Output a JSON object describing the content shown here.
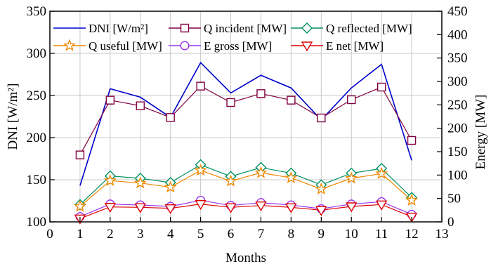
{
  "chart_data": {
    "type": "line",
    "xlabel": "Months",
    "ylabel_left": "DNI [W/m²]",
    "ylabel_right": "Energy [MW]",
    "x": [
      1,
      2,
      3,
      4,
      5,
      6,
      7,
      8,
      9,
      10,
      11,
      12
    ],
    "xlim": [
      0,
      13
    ],
    "xticks": [
      "0",
      "1",
      "2",
      "3",
      "4",
      "5",
      "6",
      "7",
      "8",
      "9",
      "10",
      "11",
      "12",
      "13"
    ],
    "ylim_left": [
      100,
      350
    ],
    "yticks_left": [
      "100",
      "150",
      "200",
      "250",
      "300",
      "350"
    ],
    "ylim_right": [
      0,
      450
    ],
    "yticks_right": [
      "0",
      "50",
      "100",
      "150",
      "200",
      "250",
      "300",
      "350",
      "400",
      "450"
    ],
    "grid": true,
    "legend_position": "top",
    "series": [
      {
        "name": "DNI [W/m²]",
        "axis": "left",
        "marker": "none",
        "color": "#0000cc",
        "values": [
          143,
          258,
          248,
          224,
          289,
          253,
          274,
          259,
          221,
          259,
          287,
          173
        ]
      },
      {
        "name": "Q incident  [MW]",
        "axis": "right",
        "marker": "square",
        "color": "#800040",
        "values": [
          143,
          260,
          248,
          223,
          290,
          255,
          274,
          260,
          222,
          261,
          288,
          174
        ]
      },
      {
        "name": "Q reflected [MW]",
        "axis": "right",
        "marker": "diamond",
        "color": "#009060",
        "values": [
          37,
          98,
          93,
          84,
          122,
          97,
          116,
          104,
          79,
          104,
          114,
          52
        ]
      },
      {
        "name": "Q useful [MW]",
        "axis": "right",
        "marker": "star",
        "color": "#ee8800",
        "values": [
          33,
          88,
          83,
          74,
          110,
          87,
          105,
          94,
          70,
          93,
          103,
          46
        ]
      },
      {
        "name": "E gross [MW]",
        "axis": "right",
        "marker": "circle",
        "color": "#9933ee",
        "values": [
          11,
          38,
          36,
          33,
          46,
          35,
          41,
          36,
          28,
          38,
          43,
          16
        ]
      },
      {
        "name": "E net [MW]",
        "axis": "right",
        "marker": "triangle",
        "color": "#dd0000",
        "values": [
          7,
          32,
          31,
          29,
          38,
          31,
          35,
          31,
          25,
          33,
          37,
          11
        ]
      }
    ]
  }
}
